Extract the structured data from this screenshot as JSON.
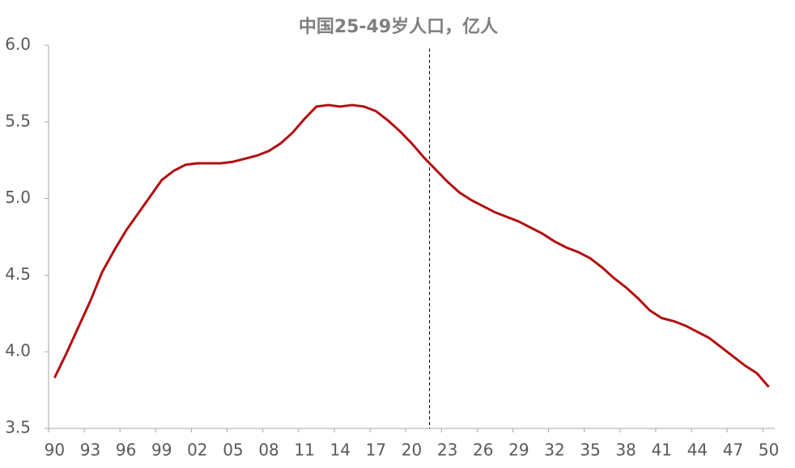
{
  "chart_data": {
    "type": "line",
    "title": "中国25-49岁人口，亿人",
    "categories": [
      "90",
      null,
      null,
      "93",
      null,
      null,
      "96",
      null,
      null,
      "99",
      null,
      null,
      "02",
      null,
      null,
      "05",
      null,
      null,
      "08",
      null,
      null,
      "11",
      null,
      null,
      "14",
      null,
      null,
      "17",
      null,
      null,
      "20",
      null,
      null,
      "23",
      null,
      null,
      "26",
      null,
      null,
      "29",
      null,
      null,
      "32",
      null,
      null,
      "35",
      null,
      null,
      "38",
      null,
      null,
      "41",
      null,
      null,
      "44",
      null,
      null,
      "47",
      null,
      null,
      "50"
    ],
    "values": [
      3.83,
      3.99,
      4.16,
      4.33,
      4.52,
      4.66,
      4.79,
      4.9,
      5.01,
      5.12,
      5.18,
      5.22,
      5.23,
      5.23,
      5.23,
      5.24,
      5.26,
      5.28,
      5.31,
      5.36,
      5.43,
      5.52,
      5.6,
      5.61,
      5.6,
      5.61,
      5.6,
      5.57,
      5.51,
      5.44,
      5.36,
      5.27,
      5.19,
      5.11,
      5.04,
      4.99,
      4.95,
      4.91,
      4.88,
      4.85,
      4.81,
      4.77,
      4.72,
      4.68,
      4.65,
      4.61,
      4.55,
      4.48,
      4.42,
      4.35,
      4.27,
      4.22,
      4.2,
      4.17,
      4.13,
      4.09,
      4.03,
      3.97,
      3.91,
      3.86,
      3.77
    ],
    "color": "#b20e10",
    "ylim": [
      3.5,
      6.0
    ],
    "yticks": [
      3.5,
      {
        "value": 4,
        "label": "4.0"
      },
      4.5,
      {
        "value": 5,
        "label": "5.0"
      },
      5.5,
      {
        "value": 6,
        "label": "6.0"
      }
    ],
    "vline_index": 32
  }
}
